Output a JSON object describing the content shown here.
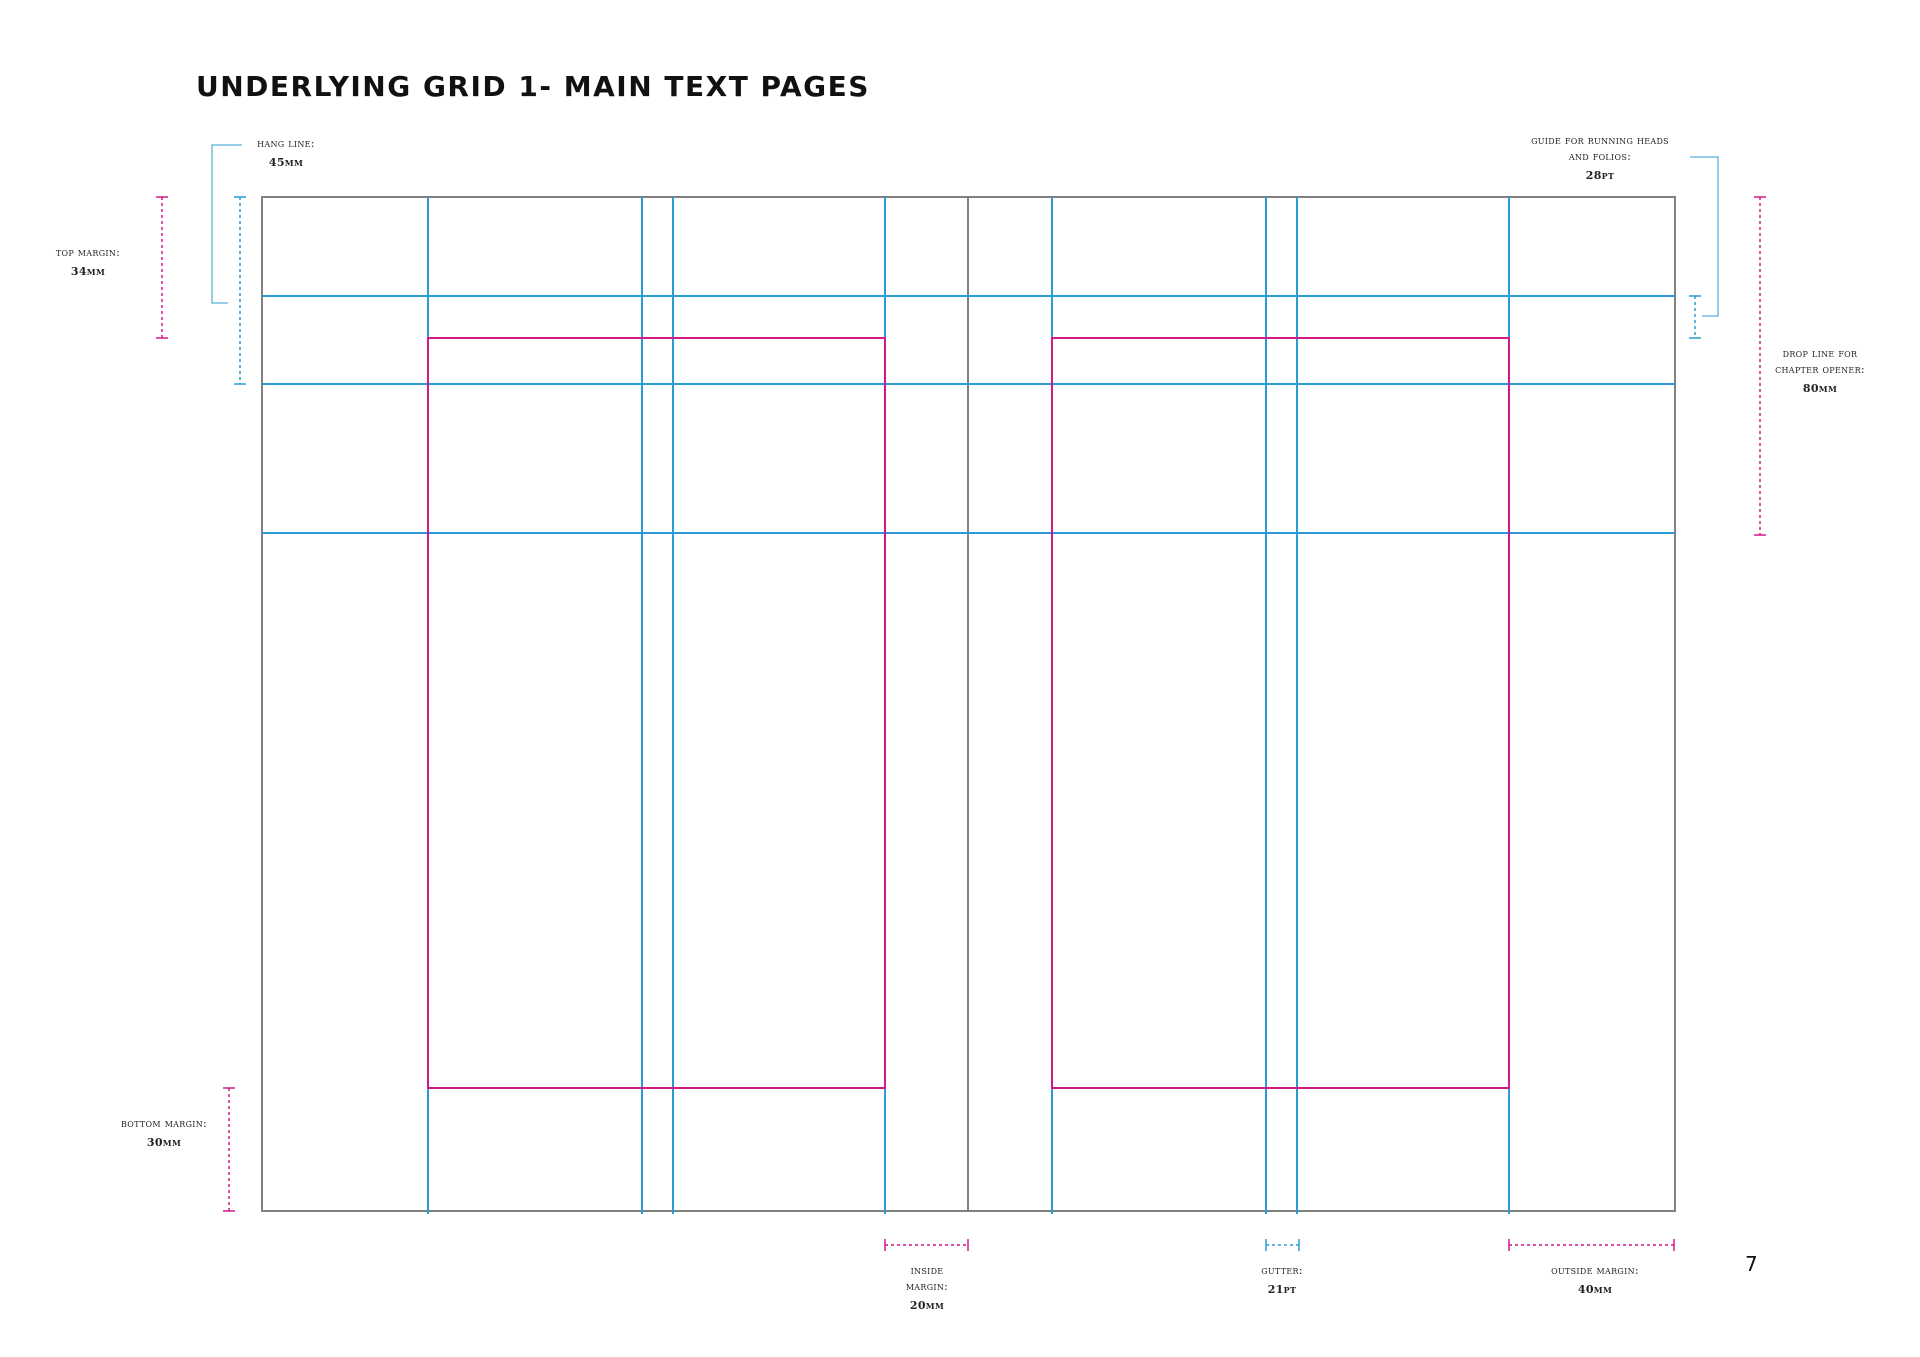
{
  "title": "UNDERLYING GRID 1- MAIN TEXT PAGES",
  "page_number": "7",
  "colors": {
    "page_outline": "#808080",
    "grid_guides": "#2a9ad6",
    "text_block": "#d01a8a",
    "text": "#222222"
  },
  "annotations": {
    "hang_line": {
      "label": "hang line:",
      "value": "45mm"
    },
    "top_margin": {
      "label": "top margin:",
      "value": "34mm"
    },
    "running_heads": {
      "label_line1": "guide for running heads",
      "label_line2": "and folios:",
      "value": "28pt"
    },
    "drop_line": {
      "label_line1": "drop line for",
      "label_line2": "chapter opener:",
      "value": "80mm"
    },
    "bottom_margin": {
      "label": "bottom margin:",
      "value": "30mm"
    },
    "inside_margin": {
      "label_line1": "inside",
      "label_line2": "margin:",
      "value": "20mm"
    },
    "gutter": {
      "label": "gutter:",
      "value": "21pt"
    },
    "outside_margin": {
      "label": "outside margin:",
      "value": "40mm"
    }
  }
}
